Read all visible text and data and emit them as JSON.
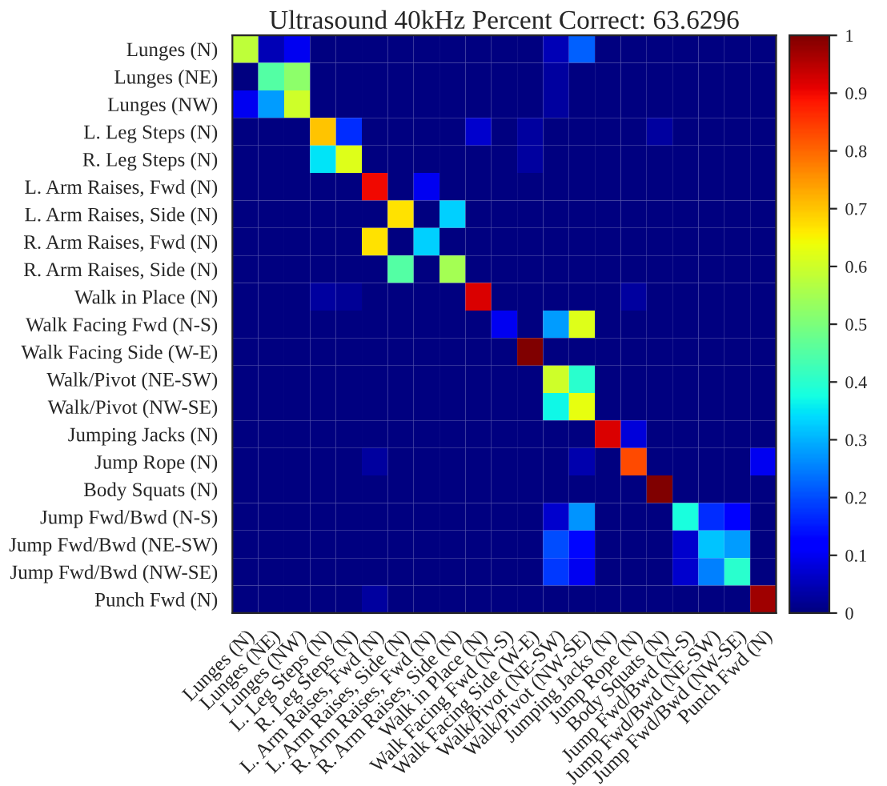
{
  "chart_data": {
    "type": "heatmap",
    "title": "Ultrasound 40kHz Percent Correct: 63.6296",
    "categories": [
      "Lunges (N)",
      "Lunges (NE)",
      "Lunges (NW)",
      "L. Leg Steps (N)",
      "R. Leg Steps (N)",
      "L. Arm Raises, Fwd (N)",
      "L. Arm Raises, Side (N)",
      "R. Arm Raises, Fwd (N)",
      "R. Arm Raises, Side (N)",
      "Walk in Place (N)",
      "Walk Facing Fwd (N-S)",
      "Walk Facing Side (W-E)",
      "Walk/Pivot (NE-SW)",
      "Walk/Pivot (NW-SE)",
      "Jumping Jacks (N)",
      "Jump Rope (N)",
      "Body Squats (N)",
      "Jump Fwd/Bwd (N-S)",
      "Jump Fwd/Bwd (NE-SW)",
      "Jump Fwd/Bwd (NW-SE)",
      "Punch Fwd (N)"
    ],
    "y_categories": [
      "Lunges (N)",
      "Lunges (NE)",
      "Lunges (NW)",
      "L. Leg Steps (N)",
      "R. Leg Steps (N)",
      "L. Arm Raises, Fwd (N)",
      "L. Arm Raises, Side (N)",
      "R. Arm Raises, Fwd (N)",
      "R. Arm Raises, Side (N)",
      "Walk in Place (N)",
      "Walk Facing Fwd (N-S)",
      "Walk Facing Side (W-E)",
      "Walk/Pivot (NE-SW)",
      "Walk/Pivot (NW-SE)",
      "Jumping Jacks (N)",
      "Jump Rope (N)",
      "Body Squats (N)",
      "Jump Fwd/Bwd (N-S)",
      "Jump Fwd/Bwd (NE-SW)",
      "Jump Fwd/Bwd (NW-SE)",
      "Punch Fwd (N)"
    ],
    "cells": [
      [
        0.58,
        0.05,
        0.1,
        0,
        0,
        0,
        0,
        0,
        0,
        0,
        0,
        0,
        0.05,
        0.22,
        0,
        0,
        0,
        0,
        0,
        0,
        0
      ],
      [
        0,
        0.45,
        0.52,
        0,
        0,
        0,
        0,
        0,
        0,
        0,
        0,
        0,
        0.03,
        0,
        0,
        0,
        0,
        0,
        0,
        0,
        0
      ],
      [
        0.1,
        0.28,
        0.6,
        0,
        0,
        0,
        0,
        0,
        0,
        0,
        0,
        0,
        0.03,
        0,
        0,
        0,
        0,
        0,
        0,
        0,
        0
      ],
      [
        0,
        0,
        0,
        0.7,
        0.17,
        0,
        0,
        0,
        0,
        0.07,
        0,
        0.03,
        0,
        0,
        0,
        0,
        0.03,
        0,
        0,
        0,
        0
      ],
      [
        0,
        0,
        0,
        0.35,
        0.62,
        0,
        0,
        0,
        0,
        0,
        0,
        0.03,
        0,
        0,
        0,
        0,
        0,
        0,
        0,
        0,
        0
      ],
      [
        0,
        0,
        0,
        0,
        0,
        0.9,
        0,
        0.1,
        0,
        0,
        0,
        0,
        0,
        0,
        0,
        0,
        0,
        0,
        0,
        0,
        0
      ],
      [
        0,
        0,
        0,
        0,
        0,
        0,
        0.67,
        0,
        0.33,
        0,
        0,
        0,
        0,
        0,
        0,
        0,
        0,
        0,
        0,
        0,
        0
      ],
      [
        0,
        0,
        0,
        0,
        0,
        0.67,
        0,
        0.33,
        0,
        0,
        0,
        0,
        0,
        0,
        0,
        0,
        0,
        0,
        0,
        0,
        0
      ],
      [
        0,
        0,
        0,
        0,
        0,
        0,
        0.45,
        0,
        0.55,
        0,
        0,
        0,
        0,
        0,
        0,
        0,
        0,
        0,
        0,
        0,
        0
      ],
      [
        0,
        0,
        0,
        0.03,
        0.02,
        0,
        0,
        0,
        0,
        0.92,
        0,
        0,
        0,
        0,
        0,
        0.03,
        0,
        0,
        0,
        0,
        0
      ],
      [
        0,
        0,
        0,
        0,
        0,
        0,
        0,
        0,
        0,
        0,
        0.1,
        0,
        0.28,
        0.62,
        0,
        0,
        0,
        0,
        0,
        0,
        0
      ],
      [
        0,
        0,
        0,
        0,
        0,
        0,
        0,
        0,
        0,
        0,
        0,
        1.0,
        0,
        0,
        0,
        0,
        0,
        0,
        0,
        0,
        0
      ],
      [
        0,
        0,
        0,
        0,
        0,
        0,
        0,
        0,
        0,
        0,
        0,
        0,
        0.6,
        0.4,
        0,
        0,
        0,
        0,
        0,
        0,
        0
      ],
      [
        0,
        0,
        0,
        0,
        0,
        0,
        0,
        0,
        0,
        0,
        0,
        0,
        0.37,
        0.63,
        0,
        0,
        0,
        0,
        0,
        0,
        0
      ],
      [
        0,
        0,
        0,
        0,
        0,
        0,
        0,
        0,
        0,
        0,
        0,
        0,
        0,
        0,
        0.92,
        0.08,
        0,
        0,
        0,
        0,
        0
      ],
      [
        0,
        0,
        0,
        0,
        0,
        0.03,
        0,
        0,
        0,
        0,
        0,
        0,
        0,
        0.04,
        0,
        0.83,
        0,
        0,
        0,
        0,
        0.1
      ],
      [
        0,
        0,
        0,
        0,
        0,
        0,
        0,
        0,
        0,
        0,
        0,
        0,
        0,
        0,
        0,
        0,
        1.0,
        0,
        0,
        0,
        0
      ],
      [
        0,
        0,
        0,
        0,
        0,
        0,
        0,
        0,
        0,
        0,
        0,
        0,
        0.07,
        0.27,
        0,
        0,
        0,
        0.38,
        0.17,
        0.11,
        0
      ],
      [
        0,
        0,
        0,
        0,
        0,
        0,
        0,
        0,
        0,
        0,
        0,
        0,
        0.2,
        0.13,
        0,
        0,
        0,
        0.07,
        0.32,
        0.28,
        0
      ],
      [
        0,
        0,
        0,
        0,
        0,
        0,
        0,
        0,
        0,
        0,
        0,
        0,
        0.18,
        0.1,
        0,
        0,
        0,
        0.07,
        0.25,
        0.4,
        0
      ],
      [
        0,
        0,
        0,
        0,
        0,
        0.03,
        0,
        0,
        0,
        0,
        0,
        0,
        0,
        0,
        0,
        0,
        0,
        0,
        0,
        0,
        0.97
      ]
    ],
    "clim": [
      0,
      1
    ],
    "cticks": [
      0,
      0.1,
      0.2,
      0.3,
      0.4,
      0.5,
      0.6,
      0.7,
      0.8,
      0.9,
      1
    ]
  }
}
